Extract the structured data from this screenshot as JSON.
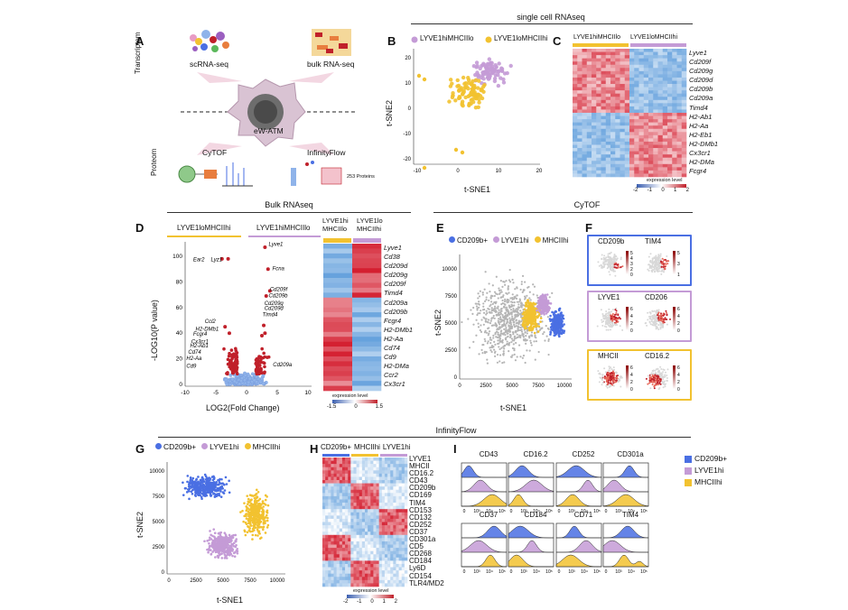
{
  "sections": {
    "scrna": "single cell RNAseq",
    "bulk": "Bulk RNAseq",
    "cytof": "CyTOF",
    "infinity": "InfinityFlow"
  },
  "panels": {
    "A": "A",
    "B": "B",
    "C": "C",
    "D": "D",
    "E": "E",
    "F": "F",
    "G": "G",
    "H": "H",
    "I": "I"
  },
  "panelA": {
    "scrna": "scRNA-seq",
    "bulk": "bulk RNA-seq",
    "center": "eW-ATM",
    "cytof": "CyTOF",
    "infinity": "InfinityFlow",
    "proteins": "253 Proteins",
    "side_top": "Transcriptom",
    "side_bottom": "Proteom"
  },
  "colors": {
    "purple": "#c49bd6",
    "yellow": "#f2c230",
    "blue": "#4a6fe3",
    "red": "#c0202a",
    "lightblue": "#8fb3ea",
    "grey": "#b5b5b5"
  },
  "panelB": {
    "legend_lyve1hi": "LYVE1hiMHCIIlo",
    "legend_lyve1lo": "LYVE1loMHCIIhi",
    "xlabel": "t-SNE1",
    "ylabel": "t-SNE2",
    "xticks": [
      "-10",
      "0",
      "10",
      "20"
    ],
    "yticks": [
      "-20",
      "-10",
      "0",
      "10",
      "20"
    ]
  },
  "panelC": {
    "col1": "LYVE1hiMHCIIlo",
    "col2": "LYVE1loMHCIIhi",
    "genes": [
      "Lyve1",
      "Cd209f",
      "Cd209g",
      "Cd209d",
      "Cd209b",
      "Cd209a",
      "Timd4",
      "H2-Ab1",
      "H2-Aa",
      "H2-Eb1",
      "H2-DMb1",
      "Cx3cr1",
      "H2-DMa",
      "Fcgr4"
    ],
    "legend_title": "expression level",
    "legend_ticks": [
      "-2",
      "-1",
      "0",
      "1",
      "2"
    ]
  },
  "panelD": {
    "group1": "LYVE1loMHCIIhi",
    "group2": "LYVE1hiMHCIIlo",
    "xlabel": "LOG2(Fold Change)",
    "ylabel": "-LOG10(P value)",
    "xticks": [
      "-10",
      "-5",
      "0",
      "5",
      "10"
    ],
    "yticks": [
      "0",
      "20",
      "40",
      "60",
      "80",
      "100"
    ],
    "labels_left": [
      "Ear2",
      "Lyz1",
      "Ccl2",
      "H2-DMb1",
      "Fcgr4",
      "Cx3cr1",
      "H2-Ab1",
      "Cd74",
      "H2-Aa",
      "Cd9"
    ],
    "labels_right": [
      "Lyve1",
      "Fcna",
      "Cd209f",
      "Cd209b",
      "Cd209g",
      "Cd209d",
      "Timd4",
      "Cd209a"
    ],
    "heat_col1": "LYVE1hi MHCIIlo",
    "heat_col2": "LYVE1lo MHCIIhi",
    "genes": [
      "Lyve1",
      "Cd38",
      "Cd209d",
      "Cd209g",
      "Cd209f",
      "Timd4",
      "Cd209a",
      "Cd209b",
      "Fcgr4",
      "H2-DMb1",
      "H2-Aa",
      "Cd74",
      "Cd9",
      "H2-DMa",
      "Ccr2",
      "Cx3cr1"
    ],
    "legend_title": "expression level",
    "legend_ticks": [
      "-1.5",
      "0",
      "1.5"
    ]
  },
  "panelE": {
    "legend": [
      "CD209b+",
      "LYVE1hi",
      "MHCIIhi"
    ],
    "xlabel": "t-SNE1",
    "ylabel": "t-SNE2",
    "xticks": [
      "0",
      "2500",
      "5000",
      "7500",
      "10000"
    ],
    "yticks": [
      "0",
      "2500",
      "5000",
      "7500",
      "10000"
    ]
  },
  "panelF": {
    "maps": [
      "CD209b",
      "TIM4",
      "LYVE1",
      "CD206",
      "MHCII",
      "CD16.2"
    ],
    "scales": [
      [
        "5",
        "4",
        "3",
        "2",
        "0"
      ],
      [
        "5",
        "3",
        "1"
      ],
      [
        "6",
        "4",
        "2",
        "0"
      ],
      [
        "6",
        "4",
        "2",
        "0"
      ],
      [
        "6",
        "4",
        "2",
        "0"
      ],
      [
        "6",
        "4",
        "2",
        "0"
      ]
    ]
  },
  "panelG": {
    "legend": [
      "CD209b+",
      "LYVE1hi",
      "MHCIIhi"
    ],
    "xlabel": "t-SNE1",
    "ylabel": "t-SNE2",
    "xticks": [
      "0",
      "2500",
      "5000",
      "7500",
      "10000"
    ],
    "yticks": [
      "0",
      "2500",
      "5000",
      "7500",
      "10000"
    ]
  },
  "panelH": {
    "cols": [
      "CD209b+",
      "MHCIIhi",
      "LYVE1hi"
    ],
    "markers": [
      "LYVE1",
      "MHCII",
      "CD16.2",
      "CD43",
      "CD209b",
      "CD169",
      "TIM4",
      "CD153",
      "CD132",
      "CD252",
      "CD37",
      "CD301a",
      "CD5",
      "CD268",
      "CD184",
      "Ly6D",
      "CD154",
      "TLR4/MD2"
    ],
    "legend_title": "expression level",
    "legend_ticks": [
      "-2",
      "-1",
      "0",
      "1",
      "2"
    ]
  },
  "panelI": {
    "markers": [
      "CD43",
      "CD16.2",
      "CD252",
      "CD301a",
      "CD37",
      "CD184",
      "CD71",
      "TIM4"
    ],
    "xticks": [
      "0",
      "10³",
      "10⁴",
      "10⁵"
    ],
    "legend": [
      "CD209b+",
      "LYVE1hi",
      "MHCIIhi"
    ]
  }
}
